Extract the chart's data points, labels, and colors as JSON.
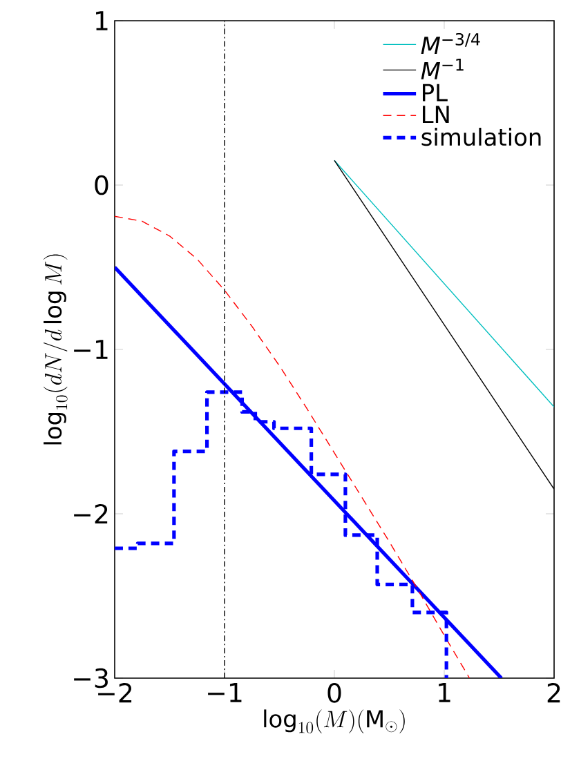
{
  "chart_data": {
    "type": "line",
    "xlabel": "\\log_{10}(M)(\\mathrm{M}_\\odot)",
    "ylabel": "\\log_{10}(dN/d\\log M)",
    "xlim": [
      -2,
      2
    ],
    "ylim": [
      -3,
      1
    ],
    "xticks": [
      {
        "value": -2,
        "label": "−2"
      },
      {
        "value": -1,
        "label": "−1"
      },
      0,
      1,
      2
    ],
    "yticks": [
      {
        "value": -3,
        "label": "−3"
      },
      {
        "value": -2,
        "label": "−2"
      },
      {
        "value": -1,
        "label": "−1"
      },
      0,
      1
    ],
    "legend": "top right",
    "marker": "none",
    "ref_lines": [
      {
        "axis": "x",
        "value": -1,
        "color": "#000000",
        "line_style": "dashdot"
      }
    ],
    "series": [
      {
        "name": "*M*$^{−3/4}$",
        "color": "#00bfbf",
        "x": [
          0,
          2
        ],
        "values": [
          0.15,
          -1.35
        ]
      },
      {
        "name": "*M*$^{−1}$",
        "color": "#000000",
        "x": [
          0,
          2
        ],
        "values": [
          0.15,
          -1.85
        ]
      },
      {
        "name": "PL",
        "color": "#0000ff",
        "x": [
          -2,
          1.52
        ],
        "values": [
          -0.5,
          -3
        ]
      },
      {
        "name": "LN",
        "color": "#ff0000",
        "line_style": "dashed",
        "x": [
          -2,
          -1.75,
          -1.5,
          -1.25,
          -1,
          -0.75,
          -0.5,
          -0.25,
          0,
          0.25,
          0.5,
          0.75,
          1,
          1.23
        ],
        "values": [
          -0.19,
          -0.22,
          -0.31,
          -0.45,
          -0.64,
          -0.86,
          -1.1,
          -1.36,
          -1.63,
          -1.9,
          -2.17,
          -2.45,
          -2.74,
          -3
        ]
      },
      {
        "name": "simulation",
        "type": "step",
        "color": "#0000ff",
        "line_style": "dashed",
        "x": [
          -2,
          -1.79,
          -1.46,
          -1.16,
          -0.84,
          -0.72,
          -0.55,
          -0.21,
          0.1,
          0.39,
          0.71,
          1.02
        ],
        "values": [
          -2.21,
          -2.18,
          -1.62,
          -1.26,
          -1.38,
          -1.44,
          -1.48,
          -1.76,
          -2.13,
          -2.43,
          -2.6,
          -3
        ]
      }
    ]
  }
}
